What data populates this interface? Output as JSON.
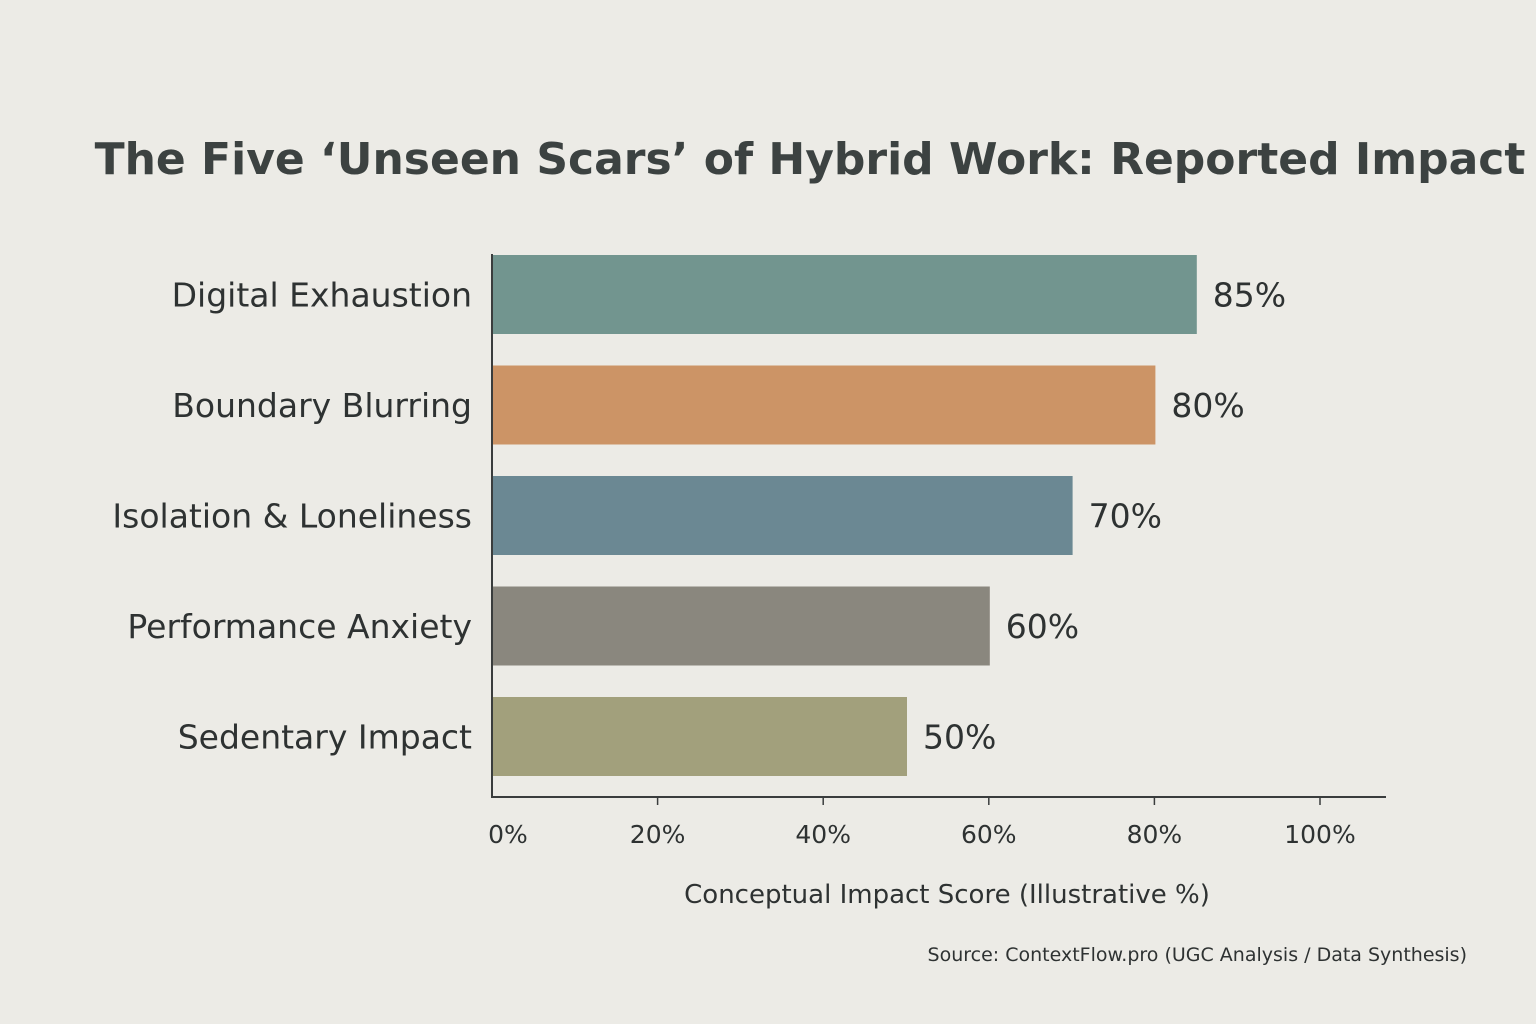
{
  "chart_data": {
    "type": "bar",
    "orientation": "horizontal",
    "title": "The Five ‘Unseen Scars’ of Hybrid Work: Reported Impact",
    "categories": [
      "Digital Exhaustion",
      "Boundary Blurring",
      "Isolation & Loneliness",
      "Performance Anxiety",
      "Sedentary Impact"
    ],
    "values": [
      85,
      80,
      70,
      60,
      50
    ],
    "value_labels": [
      "85%",
      "80%",
      "70%",
      "60%",
      "50%"
    ],
    "colors": [
      "#72958f",
      "#cc9466",
      "#6b8893",
      "#8a877e",
      "#a2a07c"
    ],
    "xlabel": "Conceptual Impact Score (Illustrative %)",
    "xlim": [
      0,
      100
    ],
    "xticks": [
      0,
      20,
      40,
      60,
      80,
      100
    ],
    "xtick_labels": [
      "0%",
      "20%",
      "40%",
      "60%",
      "80%",
      "100%"
    ],
    "grid": false,
    "legend": "none"
  },
  "source": "Source: ContextFlow.pro (UGC Analysis / Data Synthesis)"
}
